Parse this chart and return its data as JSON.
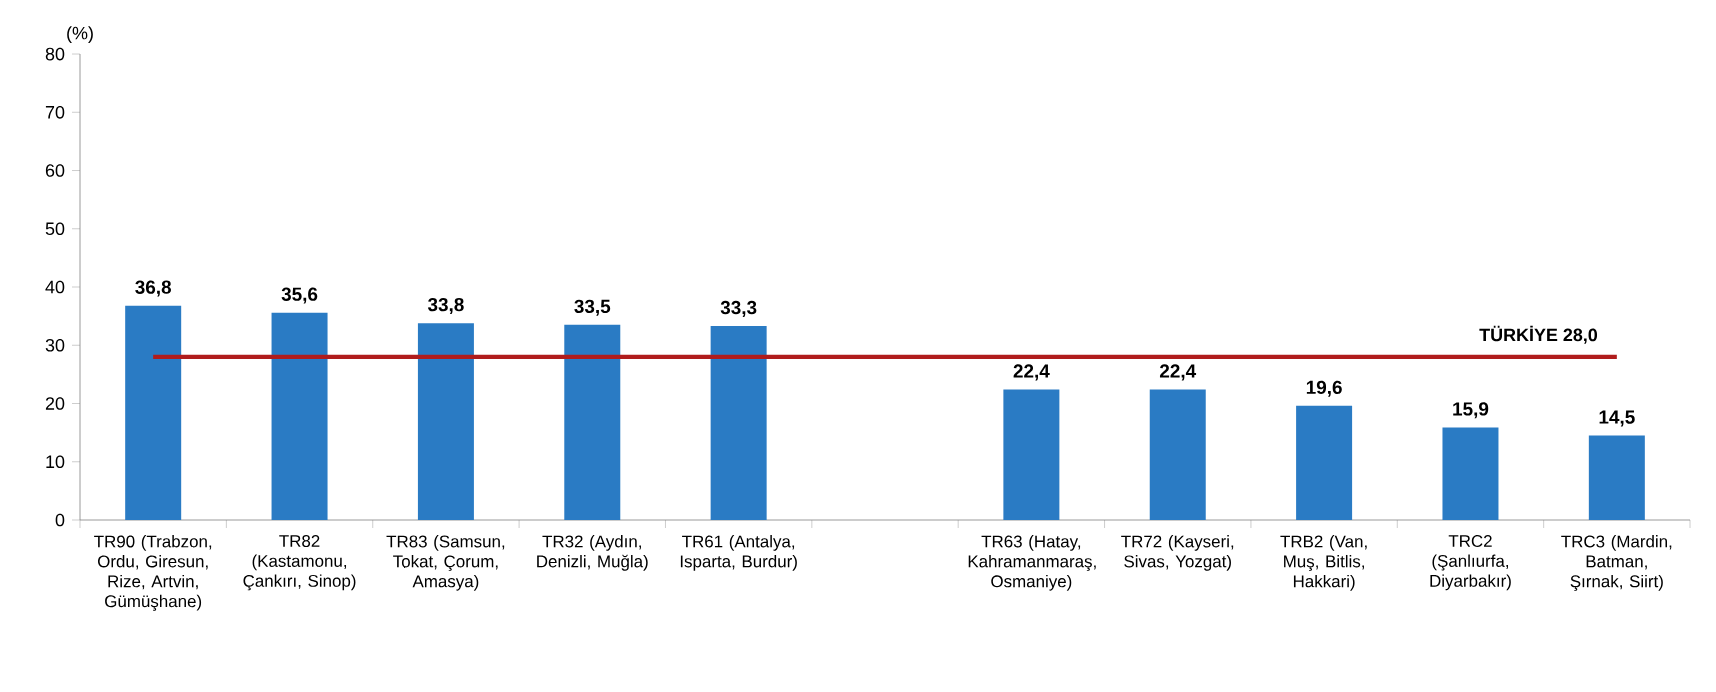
{
  "chart_data": {
    "type": "bar",
    "ylabel": "(%)",
    "categories": [
      "TR90 (Trabzon, Ordu, Giresun, Rize, Artvin, Gümüşhane)",
      "TR82 (Kastamonu, Çankırı, Sinop)",
      "TR83 (Samsun, Tokat, Çorum, Amasya)",
      "TR32 (Aydın, Denizli, Muğla)",
      "TR61 (Antalya, Isparta, Burdur)",
      null,
      "TR63 (Hatay, Kahramanmaraş, Osmaniye)",
      "TR72 (Kayseri, Sivas, Yozgat)",
      "TRB2 (Van, Muş, Bitlis, Hakkari)",
      "TRC2 (Şanlıurfa, Diyarbakır)",
      "TRC3 (Mardin, Batman, Şırnak, Siirt)"
    ],
    "values": [
      36.8,
      35.6,
      33.8,
      33.5,
      33.3,
      null,
      22.4,
      22.4,
      19.6,
      15.9,
      14.5
    ],
    "value_labels": [
      "36,8",
      "35,6",
      "33,8",
      "33,5",
      "33,3",
      null,
      "22,4",
      "22,4",
      "19,6",
      "15,9",
      "14,5"
    ],
    "color": "#2a7bc4",
    "ylim": [
      0,
      80
    ],
    "yticks": [
      0,
      10,
      20,
      30,
      40,
      50,
      60,
      70,
      80
    ],
    "ref_lines": [
      {
        "axis": "y",
        "value": 28.0,
        "label": "TÜRKİYE 28,0",
        "color": "#b01c1c"
      }
    ]
  }
}
